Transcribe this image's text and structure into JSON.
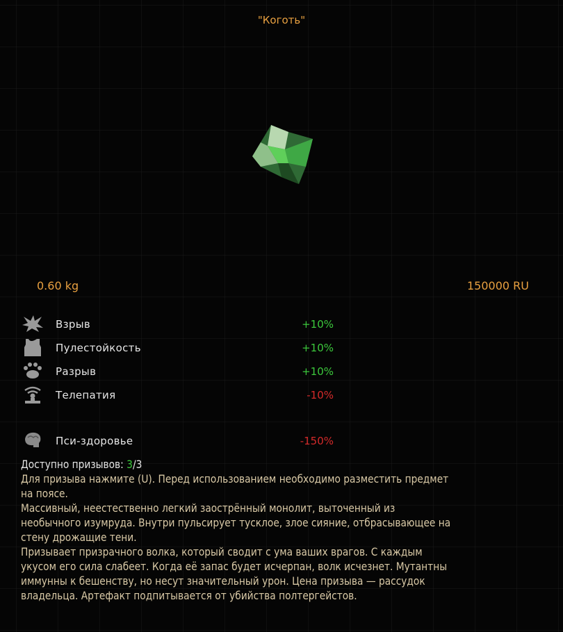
{
  "item": {
    "title": "\"Коготь\"",
    "weight": "0.60 kg",
    "price": "150000 RU"
  },
  "stats": [
    {
      "icon": "explosion-icon",
      "label": "Взрыв",
      "value": "+10%",
      "positive": true
    },
    {
      "icon": "vest-icon",
      "label": "Пулестойкость",
      "value": "+10%",
      "positive": true
    },
    {
      "icon": "paw-icon",
      "label": "Разрыв",
      "value": "+10%",
      "positive": true
    },
    {
      "icon": "telepathy-icon",
      "label": "Телепатия",
      "value": "-10%",
      "positive": false
    },
    {
      "icon": "brain-icon",
      "label": "Пси-здоровье",
      "value": "-150%",
      "positive": false
    }
  ],
  "charges": {
    "label": "Доступно призывов: ",
    "current": "3",
    "max": "/3"
  },
  "colors": {
    "accent": "#e8a040",
    "positive": "#3cc83c",
    "negative": "#d42a2a",
    "description": "#d9c9a6"
  },
  "description_lines": [
    "Для призыва нажмите (U). Перед использованием необходимо разместить предмет",
    "на поясе.",
    "Массивный, неестественно легкий заострённый монолит, выточенный из",
    "необычного изумруда. Внутри пульсирует тусклое, злое сияние, отбрасывающее на",
    "стену дрожащие тени.",
    "Призывает призрачного волка, который сводит с ума ваших врагов. С каждым",
    "укусом его сила слабеет. Когда её запас будет исчерпан, волк исчезнет. Мутантны",
    "иммунны к бешенству, но несут значительный урон. Цена призыва — рассудок",
    "владельца. Артефакт подпитывается от убийства полтергейстов."
  ]
}
